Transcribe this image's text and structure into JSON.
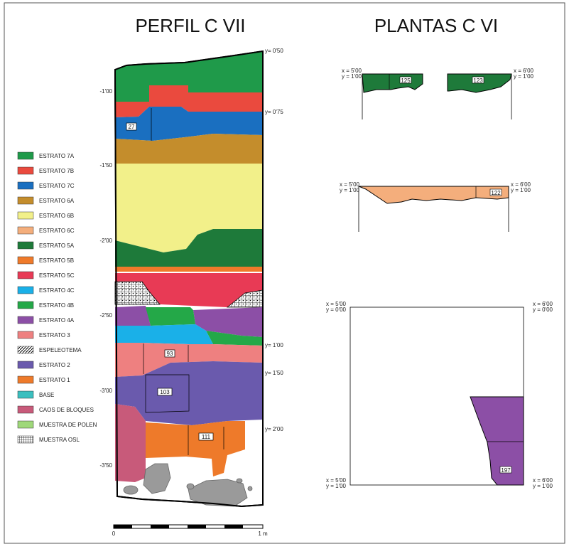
{
  "titles": {
    "perfil": "PERFIL C VII",
    "plantas": "PLANTAS C VI"
  },
  "colors": {
    "estrato_7a": "#1f9a4a",
    "estrato_7b": "#ea4a3e",
    "estrato_7c": "#1a6fc0",
    "estrato_6a": "#c48d2c",
    "estrato_6b": "#f2f08a",
    "estrato_6c": "#f4ae7c",
    "estrato_5a": "#1e7a3a",
    "estrato_5b": "#ef7a2a",
    "estrato_5c": "#e83a55",
    "estrato_4c": "#1ab0e8",
    "estrato_4b": "#24a848",
    "estrato_4a": "#8c4fa6",
    "estrato_3": "#ee8080",
    "estrato_2": "#6a5aad",
    "estrato_1": "#ee7a2a",
    "base": "#3bbfbf",
    "caos": "#c85a7a",
    "polen": "#9fd87a",
    "stone": "#9a9a9a"
  },
  "legend": [
    "ESTRATO 7A",
    "ESTRATO 7B",
    "ESTRATO 7C",
    "ESTRATO 6A",
    "ESTRATO 6B",
    "ESTRATO 6C",
    "ESTRATO 5A",
    "ESTRATO 5B",
    "ESTRATO 5C",
    "ESTRATO 4C",
    "ESTRATO 4B",
    "ESTRATO 4A",
    "ESTRATO 3",
    "ESPELEOTEMA",
    "ESTRATO 2",
    "ESTRATO 1",
    "BASE",
    "CAOS DE BLOQUES",
    "MUESTRA DE POLEN",
    "MUESTRA OSL"
  ],
  "depth_labels": [
    "-1'00",
    "-1'50",
    "-2'00",
    "-2'50",
    "-3'00",
    "-3'50"
  ],
  "profile_y_labels": [
    "y= 0'50",
    "y= 0'75",
    "y= 1'00",
    "y= 1'50",
    "y= 2'00"
  ],
  "profile_tags": [
    "27",
    "93",
    "103",
    "111"
  ],
  "scale": {
    "start": "0",
    "end": "1 m"
  },
  "plan1": {
    "x_left": "x = 5'00",
    "y_left": "y = 1'00",
    "x_right": "x = 6'00",
    "y_right": "y = 1'00",
    "tags": [
      "125",
      "123"
    ]
  },
  "plan2": {
    "x_left": "x = 5'00",
    "y_left": "y = 1'00",
    "x_right": "x = 6'00",
    "y_right": "y = 1'00",
    "tag": "122"
  },
  "plan3": {
    "tl_x": "x = 5'00",
    "tl_y": "y = 0'00",
    "tr_x": "x = 6'00",
    "tr_y": "y = 0'00",
    "bl_x": "x = 5'00",
    "bl_y": "y = 1'00",
    "br_x": "x = 6'00",
    "br_y": "y = 1'00",
    "tag": "197"
  }
}
